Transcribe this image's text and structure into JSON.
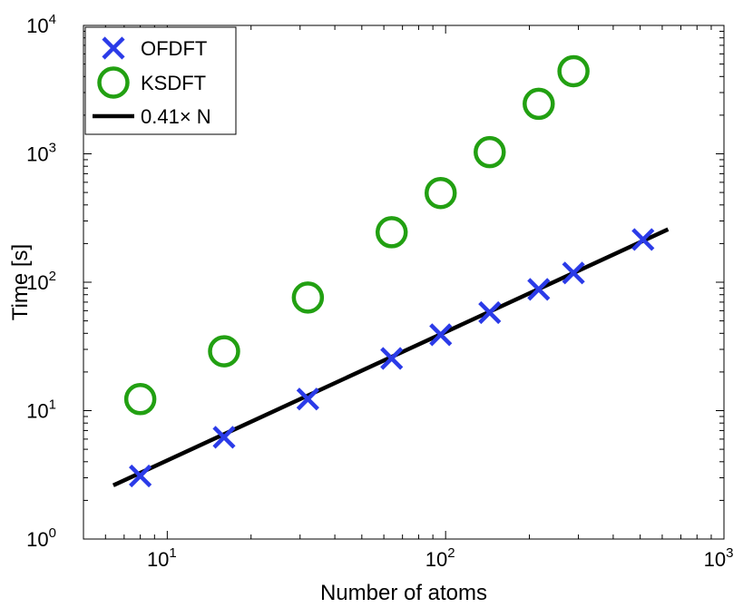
{
  "chart_data": {
    "type": "scatter",
    "xscale": "log",
    "yscale": "log",
    "xlim": [
      5,
      1000
    ],
    "ylim": [
      1,
      10000
    ],
    "xlabel": "Number of atoms",
    "ylabel": "Time [s]",
    "x_ticks": [
      {
        "base": "10",
        "exp": "1",
        "value": 10
      },
      {
        "base": "10",
        "exp": "2",
        "value": 100
      },
      {
        "base": "10",
        "exp": "3",
        "value": 1000
      }
    ],
    "y_ticks": [
      {
        "base": "10",
        "exp": "0",
        "value": 1
      },
      {
        "base": "10",
        "exp": "1",
        "value": 10
      },
      {
        "base": "10",
        "exp": "2",
        "value": 100
      },
      {
        "base": "10",
        "exp": "3",
        "value": 1000
      },
      {
        "base": "10",
        "exp": "4",
        "value": 10000
      }
    ],
    "legend_position": "top-left",
    "series": [
      {
        "name": "OFDFT",
        "marker": "x",
        "color": "#2b3be8",
        "points": [
          {
            "x": 8,
            "y": 3.1
          },
          {
            "x": 16,
            "y": 6.2
          },
          {
            "x": 32,
            "y": 12.3
          },
          {
            "x": 64,
            "y": 25.5
          },
          {
            "x": 96,
            "y": 39
          },
          {
            "x": 144,
            "y": 58
          },
          {
            "x": 216,
            "y": 88
          },
          {
            "x": 288,
            "y": 118
          },
          {
            "x": 512,
            "y": 215
          }
        ]
      },
      {
        "name": "KSDFT",
        "marker": "circle",
        "color": "#22a012",
        "points": [
          {
            "x": 8,
            "y": 12.3
          },
          {
            "x": 16,
            "y": 29
          },
          {
            "x": 32,
            "y": 76
          },
          {
            "x": 64,
            "y": 245
          },
          {
            "x": 96,
            "y": 495
          },
          {
            "x": 144,
            "y": 1030
          },
          {
            "x": 216,
            "y": 2450
          },
          {
            "x": 288,
            "y": 4400
          }
        ]
      },
      {
        "name": "0.41× N",
        "marker": "line",
        "color": "#000000",
        "points": [
          {
            "x": 6.4,
            "y": 2.62
          },
          {
            "x": 630,
            "y": 258.3
          }
        ]
      }
    ]
  }
}
